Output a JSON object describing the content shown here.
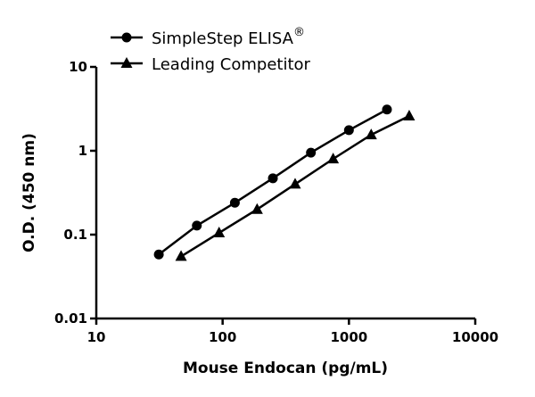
{
  "chart_data": {
    "type": "line",
    "xlabel": "Mouse Endocan (pg/mL)",
    "ylabel": "O.D. (450 nm)",
    "xscale": "log",
    "yscale": "log",
    "xlim": [
      10,
      10000
    ],
    "ylim": [
      0.01,
      10
    ],
    "xticks": [
      "10",
      "100",
      "1000",
      "10000"
    ],
    "yticks": [
      "0.01",
      "0.1",
      "1",
      "10"
    ],
    "grid": false,
    "legend_position": "top-left",
    "series": [
      {
        "name": "SimpleStep ELISA",
        "name_suffix": "®",
        "marker": "circle",
        "x": [
          31.25,
          62.5,
          125,
          250,
          500,
          1000,
          2000
        ],
        "y": [
          0.058,
          0.128,
          0.24,
          0.47,
          0.95,
          1.76,
          3.1
        ]
      },
      {
        "name": "Leading Competitor",
        "marker": "triangle",
        "x": [
          46.9,
          93.75,
          187.5,
          375,
          750,
          1500,
          3000
        ],
        "y": [
          0.055,
          0.105,
          0.2,
          0.4,
          0.8,
          1.55,
          2.6
        ]
      }
    ],
    "colors": {
      "line": "#000000"
    }
  }
}
